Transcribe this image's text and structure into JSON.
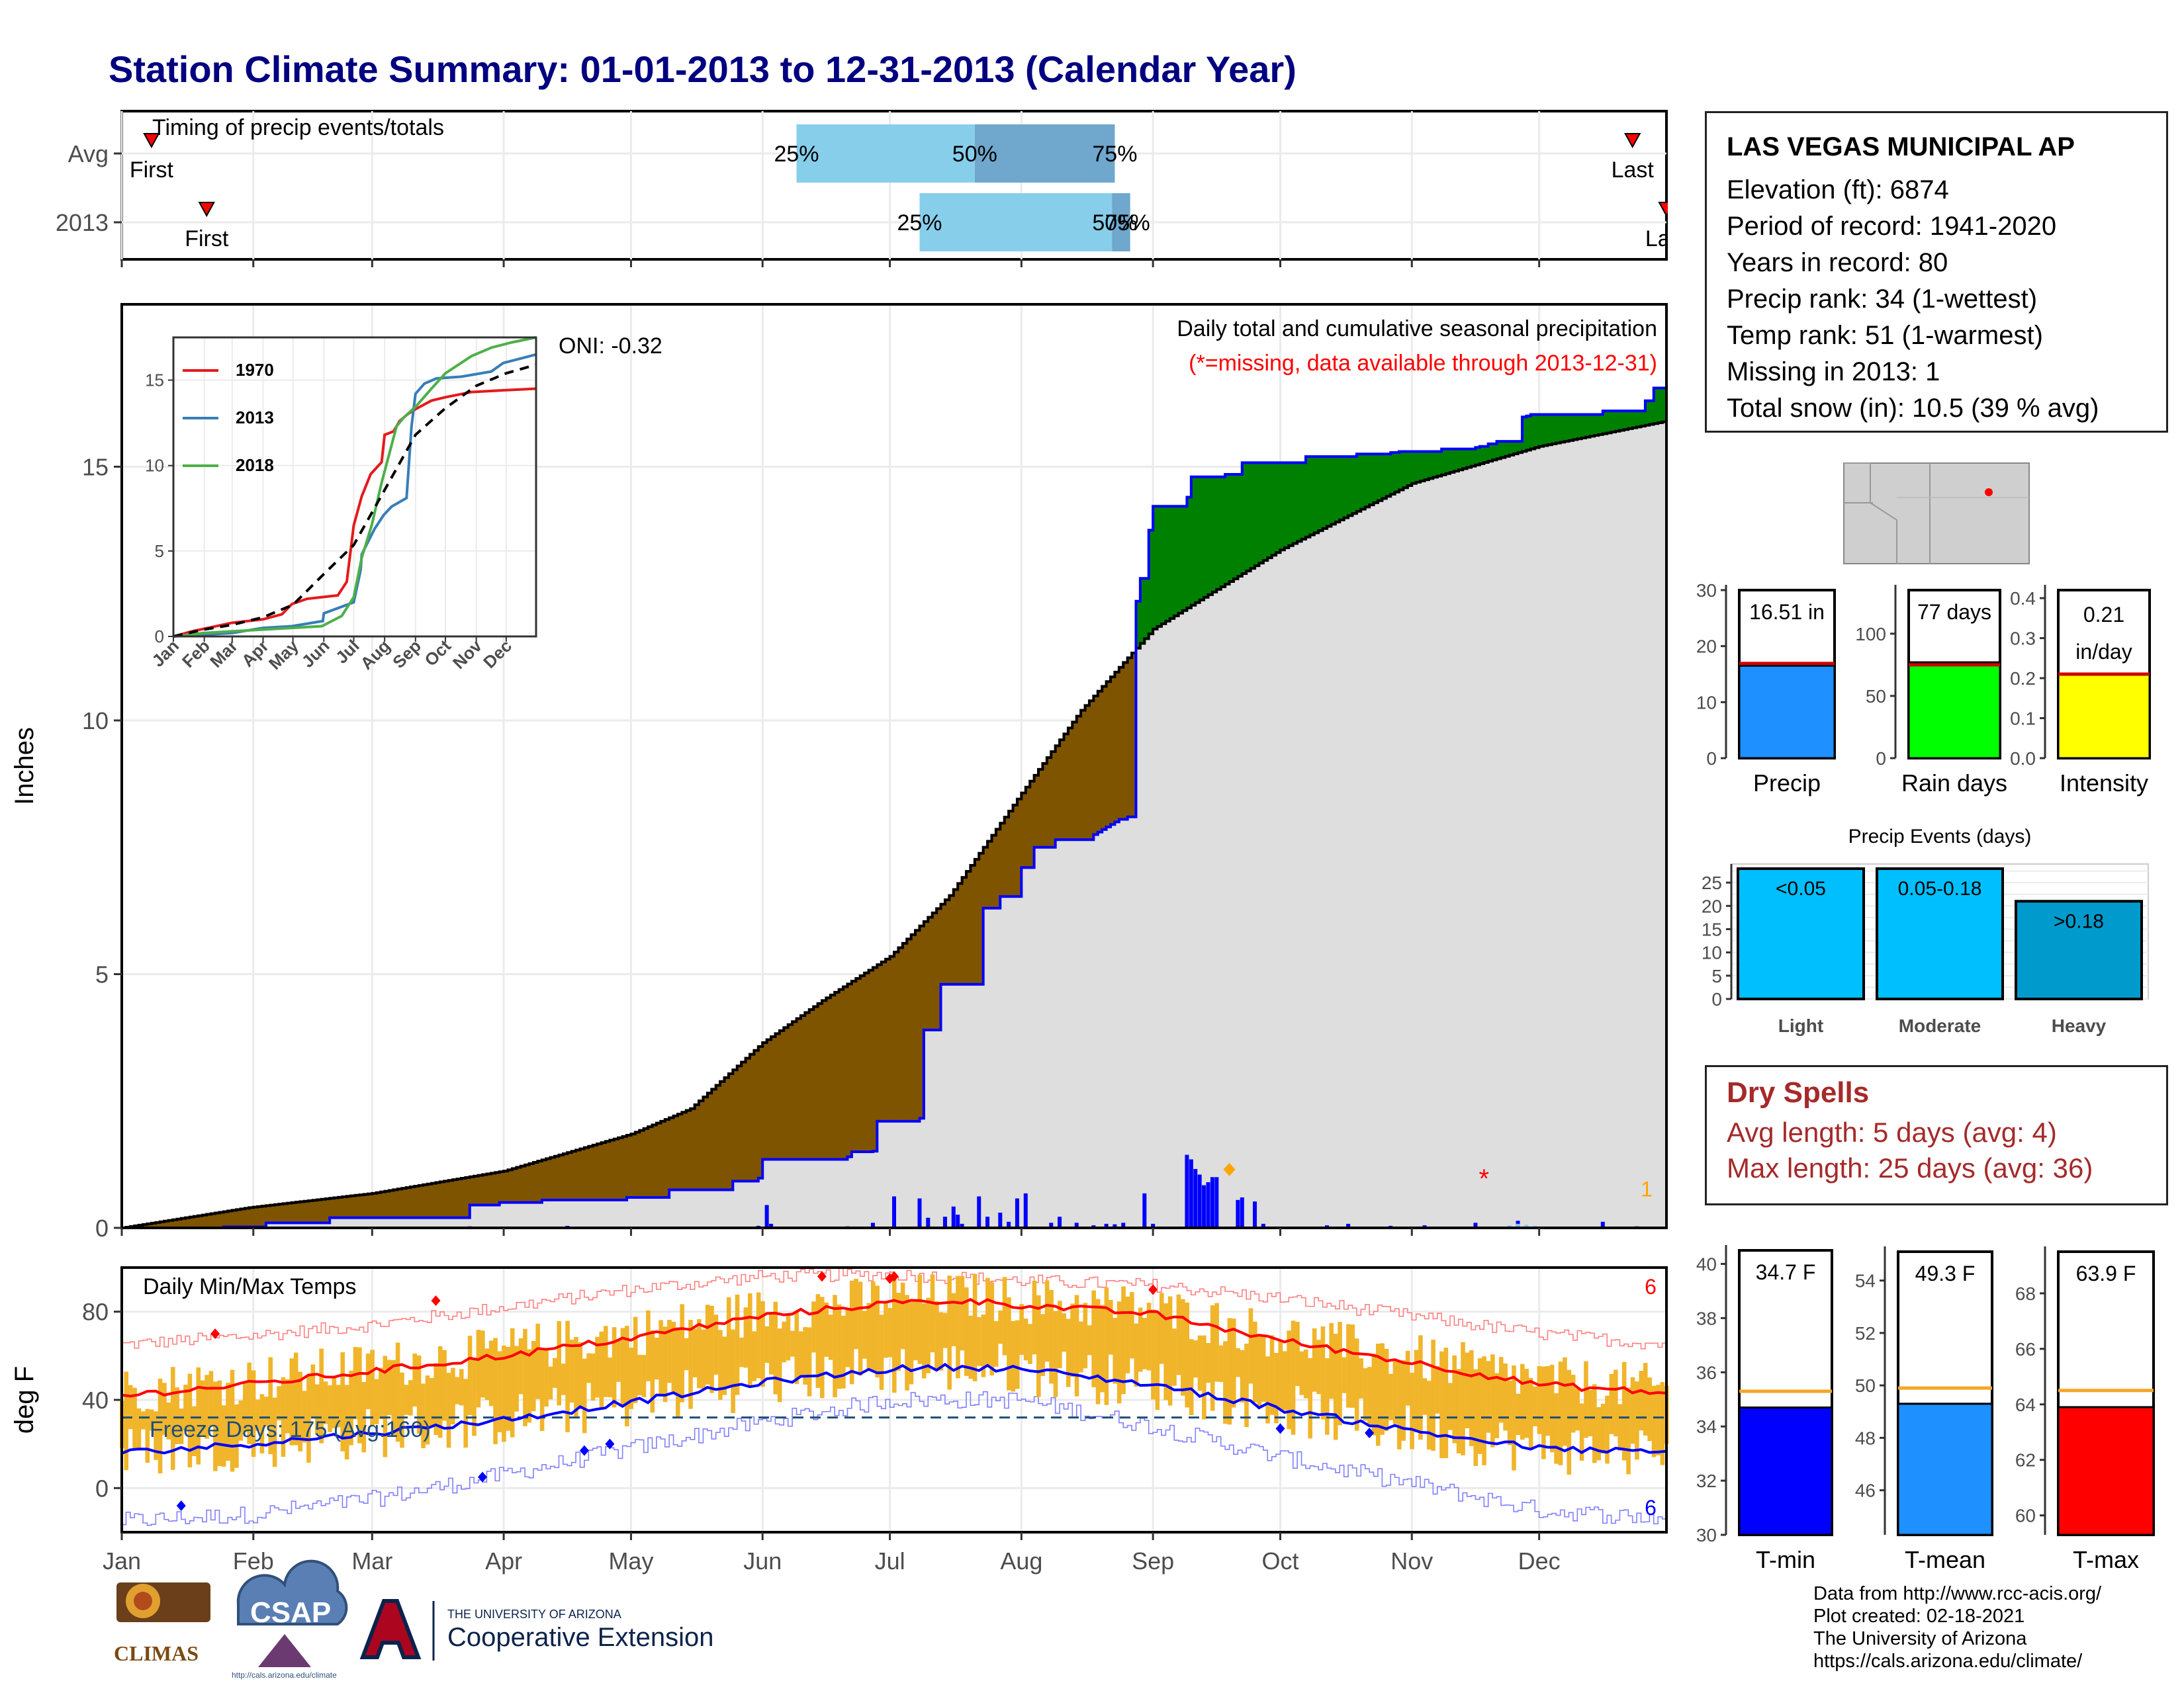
{
  "title": "Station Climate Summary: 01-01-2013 to 12-31-2013 (Calendar Year)",
  "station": {
    "name": "LAS VEGAS MUNICIPAL AP",
    "lines": [
      "Elevation (ft): 6874",
      "Period of record: 1941-2020",
      "Years in record: 80",
      "Precip rank: 34 (1-wettest)",
      "Temp rank: 51 (1-warmest)",
      "Missing in 2013: 1",
      "Total snow (in): 10.5 (39 % avg)"
    ]
  },
  "dry_spells": {
    "title": "Dry Spells",
    "avg": "Avg length: 5 days (avg: 4)",
    "max": "Max length: 25 days (avg: 36)"
  },
  "credits": [
    "Data from http://www.rcc-acis.org/",
    "Plot created: 02-18-2021",
    "The University of Arizona",
    "https://cals.arizona.edu/climate/"
  ],
  "logos": {
    "climas": "CLIMAS",
    "csap": "CSAP",
    "csap_url": "http://cals.arizona.edu/climate",
    "ua_small": "THE UNIVERSITY OF ARIZONA",
    "ua_big": "Cooperative Extension"
  },
  "colors": {
    "navy": "#000080",
    "brown": "#7f5400",
    "green": "#008000",
    "blue": "#0000ff",
    "grey_fill": "#dedede",
    "light_blue": "#87ceeb",
    "mid_blue": "#6fa7cd",
    "temp_bar": "#f0b52a",
    "red": "#ff0000",
    "dry_red": "#a52a2a"
  },
  "chart_data": [
    {
      "id": "timing",
      "type": "bar",
      "title": "Timing of precip events/totals",
      "rows": [
        {
          "label": "Avg",
          "p25": 160,
          "p50": 202,
          "p75": 235,
          "markers": [
            "25%",
            "50%",
            "75%"
          ],
          "first_doy": 8,
          "first_label": "First",
          "last_doy": 357,
          "last_label": "Last"
        },
        {
          "label": "2013",
          "p25": 189,
          "p50": 235,
          "p75": 238,
          "markers": [
            "25%",
            "50%",
            "75%"
          ],
          "first_doy": 21,
          "first_label": "First",
          "last_doy": 365,
          "last_label": "Last"
        }
      ]
    },
    {
      "id": "precip",
      "type": "area",
      "title": "Daily total and cumulative seasonal precipitation",
      "subtitle": "(*=missing, data available through 2013-12-31)",
      "oni": "ONI: -0.32",
      "ylabel": "Inches",
      "ylim": [
        0,
        18.2
      ],
      "yticks": [
        0,
        5,
        10,
        15
      ],
      "months": [
        "Jan",
        "Feb",
        "Mar",
        "Apr",
        "May",
        "Jun",
        "Jul",
        "Aug",
        "Sep",
        "Oct",
        "Nov",
        "Dec"
      ],
      "month_start_doy": [
        1,
        32,
        60,
        91,
        121,
        152,
        182,
        213,
        244,
        274,
        305,
        335
      ],
      "avg_cumulative": {
        "doy": [
          1,
          31,
          60,
          91,
          121,
          135,
          152,
          166,
          182,
          196,
          213,
          227,
          244,
          258,
          274,
          305,
          335,
          365
        ],
        "values": [
          0,
          0.4,
          0.68,
          1.12,
          1.85,
          2.35,
          3.65,
          4.48,
          5.35,
          6.55,
          8.57,
          10.2,
          11.8,
          12.53,
          13.36,
          14.67,
          15.4,
          15.9
        ]
      },
      "obs_cumulative": {
        "doy": [
          1,
          25,
          35,
          50,
          83,
          90,
          100,
          120,
          130,
          145,
          151,
          152,
          172,
          173,
          178,
          179,
          189,
          190,
          193,
          194,
          203,
          204,
          207,
          208,
          212,
          213,
          215,
          216,
          220,
          221,
          230,
          231,
          232,
          233,
          234,
          235,
          236,
          238,
          240,
          241,
          243,
          244,
          252,
          253,
          260,
          261,
          264,
          265,
          278,
          280,
          290,
          292,
          300,
          302,
          310,
          312,
          320,
          321,
          323,
          325,
          330,
          331,
          332,
          333,
          350,
          360,
          362,
          365
        ],
        "values": [
          0,
          0.02,
          0.1,
          0.2,
          0.45,
          0.5,
          0.55,
          0.6,
          0.75,
          0.92,
          0.98,
          1.35,
          1.4,
          1.5,
          1.51,
          2.1,
          2.16,
          3.9,
          3.9,
          4.8,
          4.8,
          6.3,
          6.3,
          6.53,
          6.53,
          7.1,
          7.1,
          7.5,
          7.5,
          7.65,
          7.75,
          7.8,
          7.85,
          7.9,
          7.95,
          8.0,
          8.05,
          8.1,
          12.35,
          12.8,
          13.75,
          14.22,
          14.4,
          14.8,
          14.8,
          14.85,
          14.85,
          15.08,
          15.08,
          15.2,
          15.2,
          15.25,
          15.28,
          15.3,
          15.3,
          15.35,
          15.38,
          15.4,
          15.45,
          15.5,
          15.5,
          15.98,
          16.0,
          16.03,
          16.1,
          16.3,
          16.55,
          16.51
        ]
      },
      "daily_events": [
        [
          15,
          0.02
        ],
        [
          33,
          0.03
        ],
        [
          60,
          0.02
        ],
        [
          83,
          0.03
        ],
        [
          106,
          0.04
        ],
        [
          126,
          0.02
        ],
        [
          142,
          0.02
        ],
        [
          150,
          0.02
        ],
        [
          151,
          0.04
        ],
        [
          153,
          0.45
        ],
        [
          154,
          0.08
        ],
        [
          172,
          0.03
        ],
        [
          178,
          0.1
        ],
        [
          183,
          0.62
        ],
        [
          189,
          0.58
        ],
        [
          191,
          0.2
        ],
        [
          195,
          0.22
        ],
        [
          197,
          0.42
        ],
        [
          198,
          0.26
        ],
        [
          199,
          0.08
        ],
        [
          203,
          0.62
        ],
        [
          205,
          0.22
        ],
        [
          208,
          0.3
        ],
        [
          210,
          0.12
        ],
        [
          212,
          0.58
        ],
        [
          214,
          0.68
        ],
        [
          220,
          0.1
        ],
        [
          222,
          0.22
        ],
        [
          226,
          0.1
        ],
        [
          230,
          0.05
        ],
        [
          233,
          0.08
        ],
        [
          235,
          0.07
        ],
        [
          237,
          0.1
        ],
        [
          242,
          0.68
        ],
        [
          244,
          0.08
        ],
        [
          252,
          1.44
        ],
        [
          253,
          1.35
        ],
        [
          254,
          1.16
        ],
        [
          255,
          1.05
        ],
        [
          256,
          0.84
        ],
        [
          257,
          0.9
        ],
        [
          258,
          1.0
        ],
        [
          259,
          1.0
        ],
        [
          264,
          0.55
        ],
        [
          265,
          0.6
        ],
        [
          268,
          0.52
        ],
        [
          270,
          0.08
        ],
        [
          280,
          0.02
        ],
        [
          285,
          0.05
        ],
        [
          290,
          0.08
        ],
        [
          300,
          0.04
        ],
        [
          308,
          0.05
        ],
        [
          312,
          0.02
        ],
        [
          320,
          0.1
        ],
        [
          330,
          0.14
        ],
        [
          350,
          0.12
        ],
        [
          358,
          0.03
        ]
      ],
      "snow_flags": [
        [
          328,
          0.05
        ],
        [
          330,
          0.08
        ],
        [
          332,
          0.06
        ],
        [
          334,
          0.04
        ]
      ],
      "missing_marker": {
        "doy": 322,
        "value": 0.98,
        "label": "*"
      },
      "orange_marker": {
        "doy": 262,
        "value": 1.15
      },
      "count_label": "1"
    },
    {
      "id": "inset_cumulative",
      "type": "line",
      "xlabels": [
        "Jan",
        "Feb",
        "Mar",
        "Apr",
        "May",
        "Jun",
        "Jul",
        "Aug",
        "Sep",
        "Oct",
        "Nov",
        "Dec"
      ],
      "ylim": [
        0,
        17.5
      ],
      "yticks": [
        0,
        5,
        10,
        15
      ],
      "series": [
        {
          "name": "1970",
          "color": "#e41a1c",
          "x": [
            1,
            20,
            60,
            91,
            110,
            120,
            135,
            150,
            166,
            175,
            182,
            190,
            199,
            210,
            213,
            222,
            228,
            236,
            244,
            260,
            274,
            300,
            330,
            365
          ],
          "y": [
            0,
            0.3,
            0.8,
            1.0,
            1.3,
            1.9,
            2.2,
            2.3,
            2.4,
            3.2,
            6.5,
            8.2,
            9.5,
            10.2,
            11.8,
            12.0,
            12.6,
            13.0,
            13.3,
            13.8,
            14.0,
            14.3,
            14.4,
            14.5
          ]
        },
        {
          "name": "2013",
          "color": "#377eb8",
          "x": [
            1,
            31,
            60,
            91,
            120,
            151,
            152,
            182,
            189,
            190,
            203,
            212,
            220,
            235,
            240,
            244,
            253,
            265,
            290,
            320,
            332,
            365
          ],
          "y": [
            0,
            0.1,
            0.2,
            0.5,
            0.6,
            0.9,
            1.35,
            2.0,
            3.9,
            4.8,
            6.3,
            7.1,
            7.6,
            8.1,
            12.3,
            14.2,
            14.8,
            15.1,
            15.2,
            15.5,
            16.0,
            16.5
          ]
        },
        {
          "name": "2018",
          "color": "#4daf4a",
          "x": [
            1,
            31,
            60,
            91,
            120,
            150,
            170,
            182,
            190,
            200,
            210,
            225,
            232,
            245,
            260,
            274,
            300,
            320,
            340,
            365
          ],
          "y": [
            0,
            0.2,
            0.3,
            0.4,
            0.5,
            0.6,
            1.2,
            2.3,
            4.6,
            6.5,
            9.0,
            12.3,
            12.8,
            13.5,
            14.5,
            15.4,
            16.4,
            16.9,
            17.2,
            17.5
          ]
        },
        {
          "name": "",
          "color": "#000000",
          "dash": true,
          "x": [
            1,
            31,
            60,
            91,
            121,
            152,
            182,
            213,
            244,
            274,
            305,
            335,
            365
          ],
          "y": [
            0,
            0.4,
            0.68,
            1.12,
            1.85,
            3.65,
            5.35,
            8.57,
            11.8,
            13.36,
            14.67,
            15.4,
            15.9
          ]
        }
      ]
    },
    {
      "id": "temps",
      "type": "bar",
      "title": "Daily Min/Max Temps",
      "ylabel": "deg F",
      "ylim": [
        -20,
        100
      ],
      "yticks": [
        0,
        40,
        80
      ],
      "freeze_label": "Freeze Days: 175 (Avg:160)",
      "freeze_line": 32,
      "count_label_top": "6",
      "count_label_bottom": "6",
      "months": [
        "Jan",
        "Feb",
        "Mar",
        "Apr",
        "May",
        "Jun",
        "Jul",
        "Aug",
        "Sep",
        "Oct",
        "Nov",
        "Dec"
      ],
      "avg_max": {
        "doy": [
          1,
          31,
          60,
          91,
          121,
          152,
          182,
          200,
          213,
          244,
          274,
          305,
          335,
          365
        ],
        "values": [
          42,
          47,
          53,
          60,
          68,
          78,
          84,
          85,
          83,
          79,
          67,
          57,
          47,
          43
        ]
      },
      "avg_min": {
        "doy": [
          1,
          31,
          60,
          91,
          121,
          152,
          182,
          200,
          213,
          244,
          274,
          305,
          335,
          365
        ],
        "values": [
          16,
          20,
          25,
          31,
          39,
          48,
          54,
          55,
          54,
          47,
          36,
          26,
          18,
          16
        ]
      },
      "record_max": {
        "doy": [
          1,
          31,
          60,
          91,
          121,
          152,
          182,
          213,
          244,
          274,
          305,
          335,
          365
        ],
        "values": [
          65,
          69,
          74,
          82,
          90,
          96,
          97,
          94,
          92,
          86,
          78,
          70,
          65
        ]
      },
      "record_min": {
        "doy": [
          1,
          31,
          60,
          91,
          121,
          152,
          182,
          213,
          244,
          274,
          305,
          335,
          365
        ],
        "values": [
          -15,
          -12,
          -5,
          6,
          18,
          30,
          40,
          40,
          28,
          14,
          2,
          -10,
          -14
        ]
      },
      "record_high_days": [
        [
          23,
          70
        ],
        [
          75,
          85
        ],
        [
          166,
          96
        ],
        [
          182,
          95
        ],
        [
          183,
          96
        ],
        [
          244,
          90
        ]
      ],
      "record_low_days": [
        [
          15,
          -8
        ],
        [
          86,
          5
        ],
        [
          110,
          17
        ],
        [
          116,
          20
        ],
        [
          274,
          27
        ],
        [
          295,
          25
        ]
      ]
    },
    {
      "id": "summary_precip",
      "type": "bar",
      "items": [
        {
          "category": "Precip",
          "value": 16.51,
          "avg": 16.9,
          "label": "16.51 in",
          "ylim": [
            0,
            30
          ],
          "yticks": [
            0,
            10,
            20,
            30
          ],
          "color": "#1e90ff"
        },
        {
          "category": "Rain days",
          "value": 77,
          "avg": 75,
          "label": "77 days",
          "ylim": [
            0,
            135
          ],
          "yticks": [
            0,
            50,
            100
          ],
          "color": "#00ff00"
        },
        {
          "category": "Intensity",
          "value": 0.21,
          "avg": 0.21,
          "label_lines": [
            "0.21",
            "in/day"
          ],
          "ylim": [
            0,
            0.42
          ],
          "yticks": [
            "0.0",
            "0.1",
            "0.2",
            "0.3",
            "0.4"
          ],
          "color": "#ffff00"
        }
      ]
    },
    {
      "id": "precip_events",
      "type": "bar",
      "title": "Precip Events (days)",
      "categories": [
        "Light",
        "Moderate",
        "Heavy"
      ],
      "bin_labels": [
        "<0.05",
        "0.05-0.18",
        ">0.18"
      ],
      "values": [
        28,
        28,
        21
      ],
      "colors": [
        "#00bfff",
        "#00bfff",
        "#009acd"
      ],
      "ylim": [
        0,
        29
      ],
      "yticks": [
        0,
        5,
        10,
        15,
        20,
        25
      ]
    },
    {
      "id": "summary_temps",
      "type": "bar",
      "items": [
        {
          "category": "T-min",
          "value": 34.7,
          "avg": 35.3,
          "label": "34.7 F",
          "ylim": [
            30,
            40.5
          ],
          "yticks": [
            30,
            32,
            34,
            36,
            38,
            40
          ],
          "color": "#0000ff"
        },
        {
          "category": "T-mean",
          "value": 49.3,
          "avg": 49.9,
          "label": "49.3 F",
          "ylim": [
            44.3,
            55.1
          ],
          "yticks": [
            46,
            48,
            50,
            52,
            54
          ],
          "color": "#1e90ff"
        },
        {
          "category": "T-max",
          "value": 63.9,
          "avg": 64.5,
          "label": "63.9 F",
          "ylim": [
            59.3,
            69.5
          ],
          "yticks": [
            60,
            62,
            64,
            66,
            68
          ],
          "color": "#ff0000"
        }
      ]
    }
  ]
}
